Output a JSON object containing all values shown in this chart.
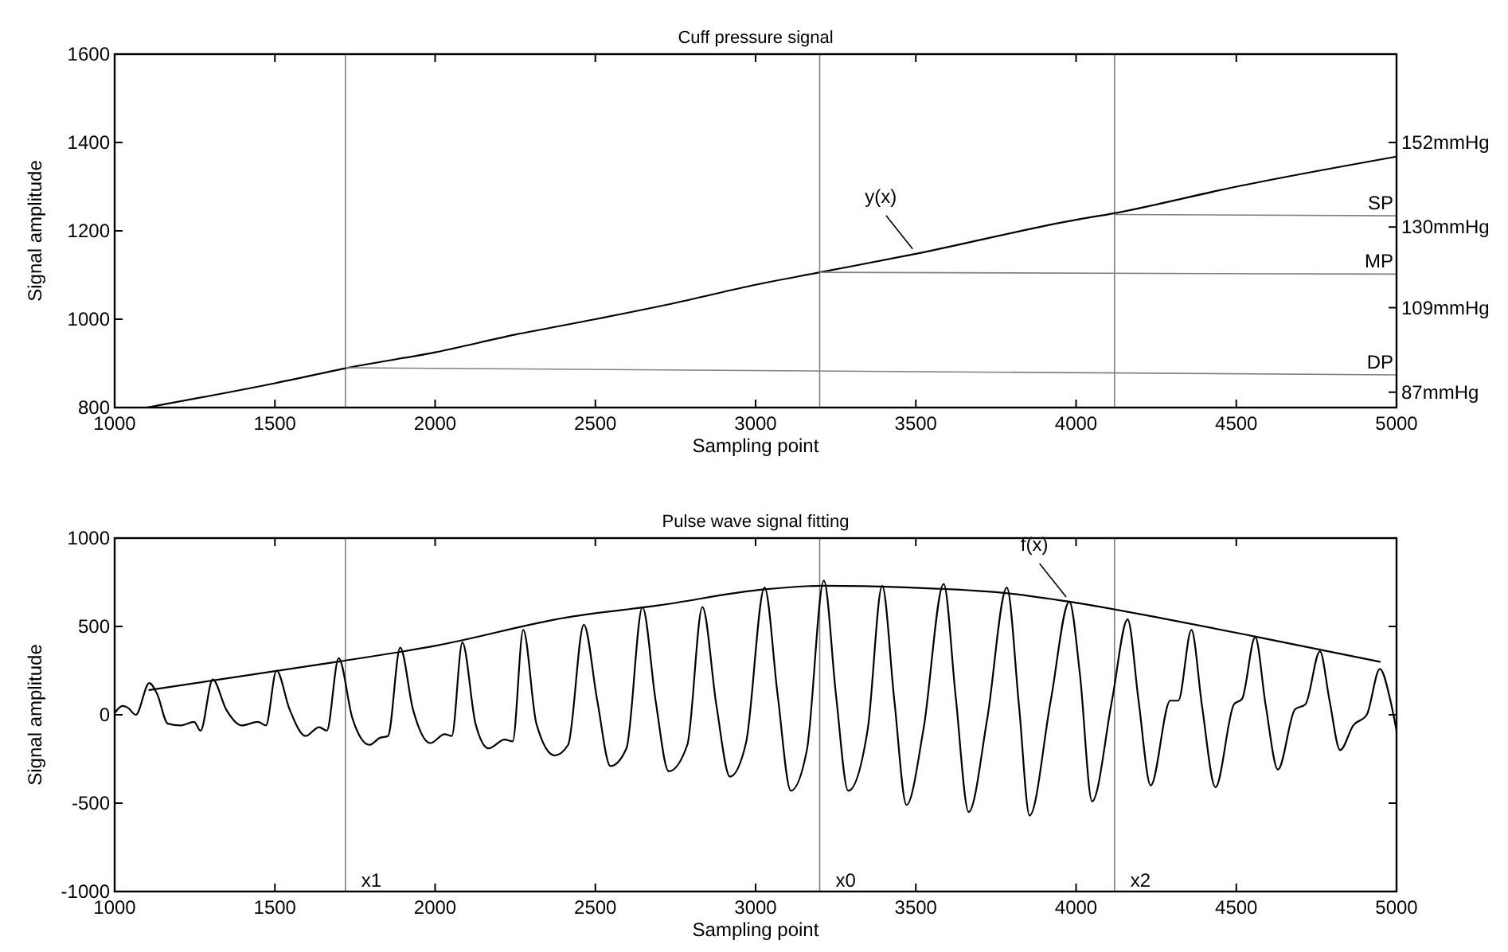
{
  "chart_data": [
    {
      "type": "line",
      "title": "Cuff pressure signal",
      "xlabel": "Sampling point",
      "ylabel": "Signal amplitude",
      "xlim": [
        1000,
        5000
      ],
      "ylim": [
        800,
        1600
      ],
      "xticks": [
        1000,
        1500,
        2000,
        2500,
        3000,
        3500,
        4000,
        4500,
        5000
      ],
      "yticks": [
        800,
        1000,
        1200,
        1400,
        1600
      ],
      "y2lim": [
        83,
        175
      ],
      "y2ticks": [
        {
          "value": 87,
          "label": "87mmHg"
        },
        {
          "value": 109,
          "label": "109mmHg"
        },
        {
          "value": 130,
          "label": "130mmHg"
        },
        {
          "value": 152,
          "label": "152mmHg"
        }
      ],
      "grid": false,
      "series": [
        {
          "name": "y(x)",
          "color": "#000000",
          "x": [
            1100,
            1500,
            1750,
            2000,
            2250,
            2500,
            2750,
            3000,
            3200,
            3500,
            4000,
            4120,
            4500,
            5000
          ],
          "values": [
            800,
            855,
            893,
            925,
            965,
            1000,
            1037,
            1078,
            1106,
            1148,
            1225,
            1240,
            1300,
            1368
          ]
        },
        {
          "name": "SP",
          "color": "#808080",
          "x": [
            4120,
            5000
          ],
          "values": [
            1237,
            1234
          ]
        },
        {
          "name": "MP",
          "color": "#808080",
          "x": [
            3200,
            5000
          ],
          "values": [
            1106,
            1102
          ]
        },
        {
          "name": "DP",
          "color": "#808080",
          "x": [
            1720,
            5000
          ],
          "values": [
            890,
            874
          ]
        }
      ],
      "ref_lines": [
        {
          "axis": "x",
          "value": 1720,
          "label": null,
          "color": "#808080"
        },
        {
          "axis": "x",
          "value": 3200,
          "label": null,
          "color": "#808080"
        },
        {
          "axis": "x",
          "value": 4120,
          "label": null,
          "color": "#808080"
        }
      ]
    },
    {
      "type": "line",
      "title": "Pulse wave signal fitting",
      "xlabel": "Sampling point",
      "ylabel": "Signal amplitude",
      "xlim": [
        1000,
        5000
      ],
      "ylim": [
        -1000,
        1000
      ],
      "xticks": [
        1000,
        1500,
        2000,
        2500,
        3000,
        3500,
        4000,
        4500,
        5000
      ],
      "yticks": [
        -1000,
        -500,
        0,
        500,
        1000
      ],
      "grid": false,
      "series": [
        {
          "color": "#000000",
          "x": [
            1000,
            1025,
            1041,
            1066,
            1108,
            1132,
            1166,
            1207,
            1248,
            1268,
            1306,
            1348,
            1397,
            1447,
            1472,
            1505,
            1546,
            1596,
            1638,
            1662,
            1699,
            1742,
            1795,
            1828,
            1853,
            1891,
            1931,
            1985,
            2030,
            2052,
            2085,
            2126,
            2167,
            2217,
            2242,
            2275,
            2316,
            2373,
            2415,
            2464,
            2506,
            2547,
            2597,
            2647,
            2688,
            2729,
            2787,
            2834,
            2878,
            2920,
            2970,
            3028,
            3069,
            3110,
            3160,
            3213,
            3251,
            3289,
            3350,
            3395,
            3433,
            3471,
            3524,
            3587,
            3624,
            3665,
            3723,
            3784,
            3822,
            3855,
            3921,
            3979,
            4012,
            4050,
            4112,
            4161,
            4195,
            4233,
            4294,
            4319,
            4360,
            4393,
            4435,
            4493,
            4518,
            4559,
            4592,
            4630,
            4683,
            4716,
            4761,
            4791,
            4824,
            4865,
            4907,
            4948,
            4981,
            5000
          ],
          "values": [
            10,
            50,
            40,
            0,
            180,
            120,
            -50,
            -60,
            -40,
            -90,
            200,
            30,
            -60,
            -40,
            -60,
            250,
            30,
            -120,
            -70,
            -90,
            320,
            -20,
            -170,
            -130,
            -120,
            380,
            30,
            -160,
            -110,
            -120,
            410,
            -50,
            -190,
            -140,
            -150,
            480,
            -50,
            -230,
            -170,
            510,
            80,
            -290,
            -190,
            610,
            80,
            -320,
            -170,
            610,
            50,
            -350,
            -160,
            720,
            110,
            -430,
            -200,
            760,
            110,
            -430,
            -80,
            730,
            80,
            -510,
            -80,
            740,
            110,
            -550,
            -20,
            720,
            50,
            -570,
            80,
            640,
            230,
            -490,
            80,
            540,
            80,
            -400,
            80,
            80,
            480,
            50,
            -410,
            60,
            90,
            440,
            50,
            -310,
            30,
            60,
            360,
            80,
            -200,
            -60,
            0,
            260,
            80,
            -90
          ]
        },
        {
          "name": "f(x)",
          "color": "#000000",
          "x": [
            1108,
            1695,
            2000,
            2408,
            2700,
            3028,
            3210,
            3481,
            3773,
            3979,
            4286,
            4567,
            4948
          ],
          "values": [
            140,
            300,
            390,
            550,
            620,
            710,
            730,
            720,
            690,
            640,
            540,
            440,
            300
          ]
        }
      ],
      "ref_lines": [
        {
          "axis": "x",
          "value": 1720,
          "label": "x1",
          "color": "#808080"
        },
        {
          "axis": "x",
          "value": 3200,
          "label": "x0",
          "color": "#808080"
        },
        {
          "axis": "x",
          "value": 4120,
          "label": "x2",
          "color": "#808080"
        }
      ]
    }
  ]
}
